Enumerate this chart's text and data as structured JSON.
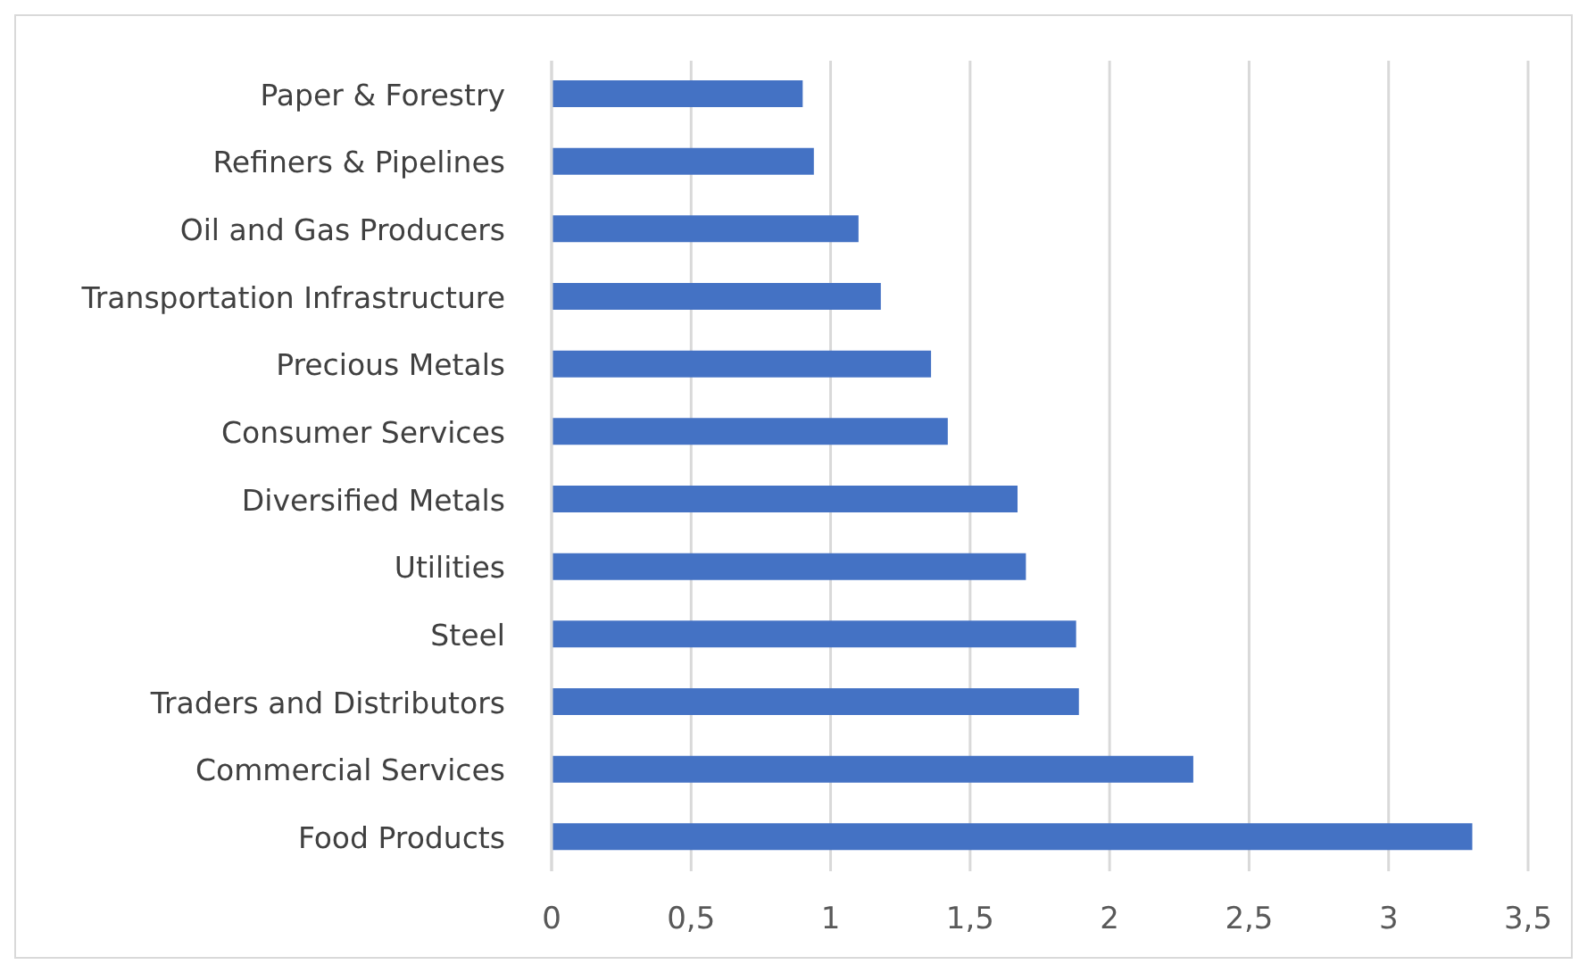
{
  "chart_data": {
    "type": "bar",
    "orientation": "horizontal",
    "categories": [
      "Paper & Forestry",
      "Refiners & Pipelines",
      "Oil and Gas Producers",
      "Transportation Infrastructure",
      "Precious Metals",
      "Consumer Services",
      "Diversified Metals",
      "Utilities",
      "Steel",
      "Traders and Distributors",
      "Commercial Services",
      "Food Products"
    ],
    "values": [
      0.9,
      0.94,
      1.1,
      1.18,
      1.36,
      1.42,
      1.67,
      1.7,
      1.88,
      1.89,
      2.3,
      3.3
    ],
    "color": "#4472c4",
    "xlim": [
      0,
      3.5
    ],
    "xticks": [
      0,
      {
        "value": 0.5,
        "label": "0,5"
      },
      1,
      {
        "value": 1.5,
        "label": "1,5"
      },
      2,
      {
        "value": 2.5,
        "label": "2,5"
      },
      3,
      {
        "value": 3.5,
        "label": "3,5"
      }
    ],
    "grid": "x"
  }
}
